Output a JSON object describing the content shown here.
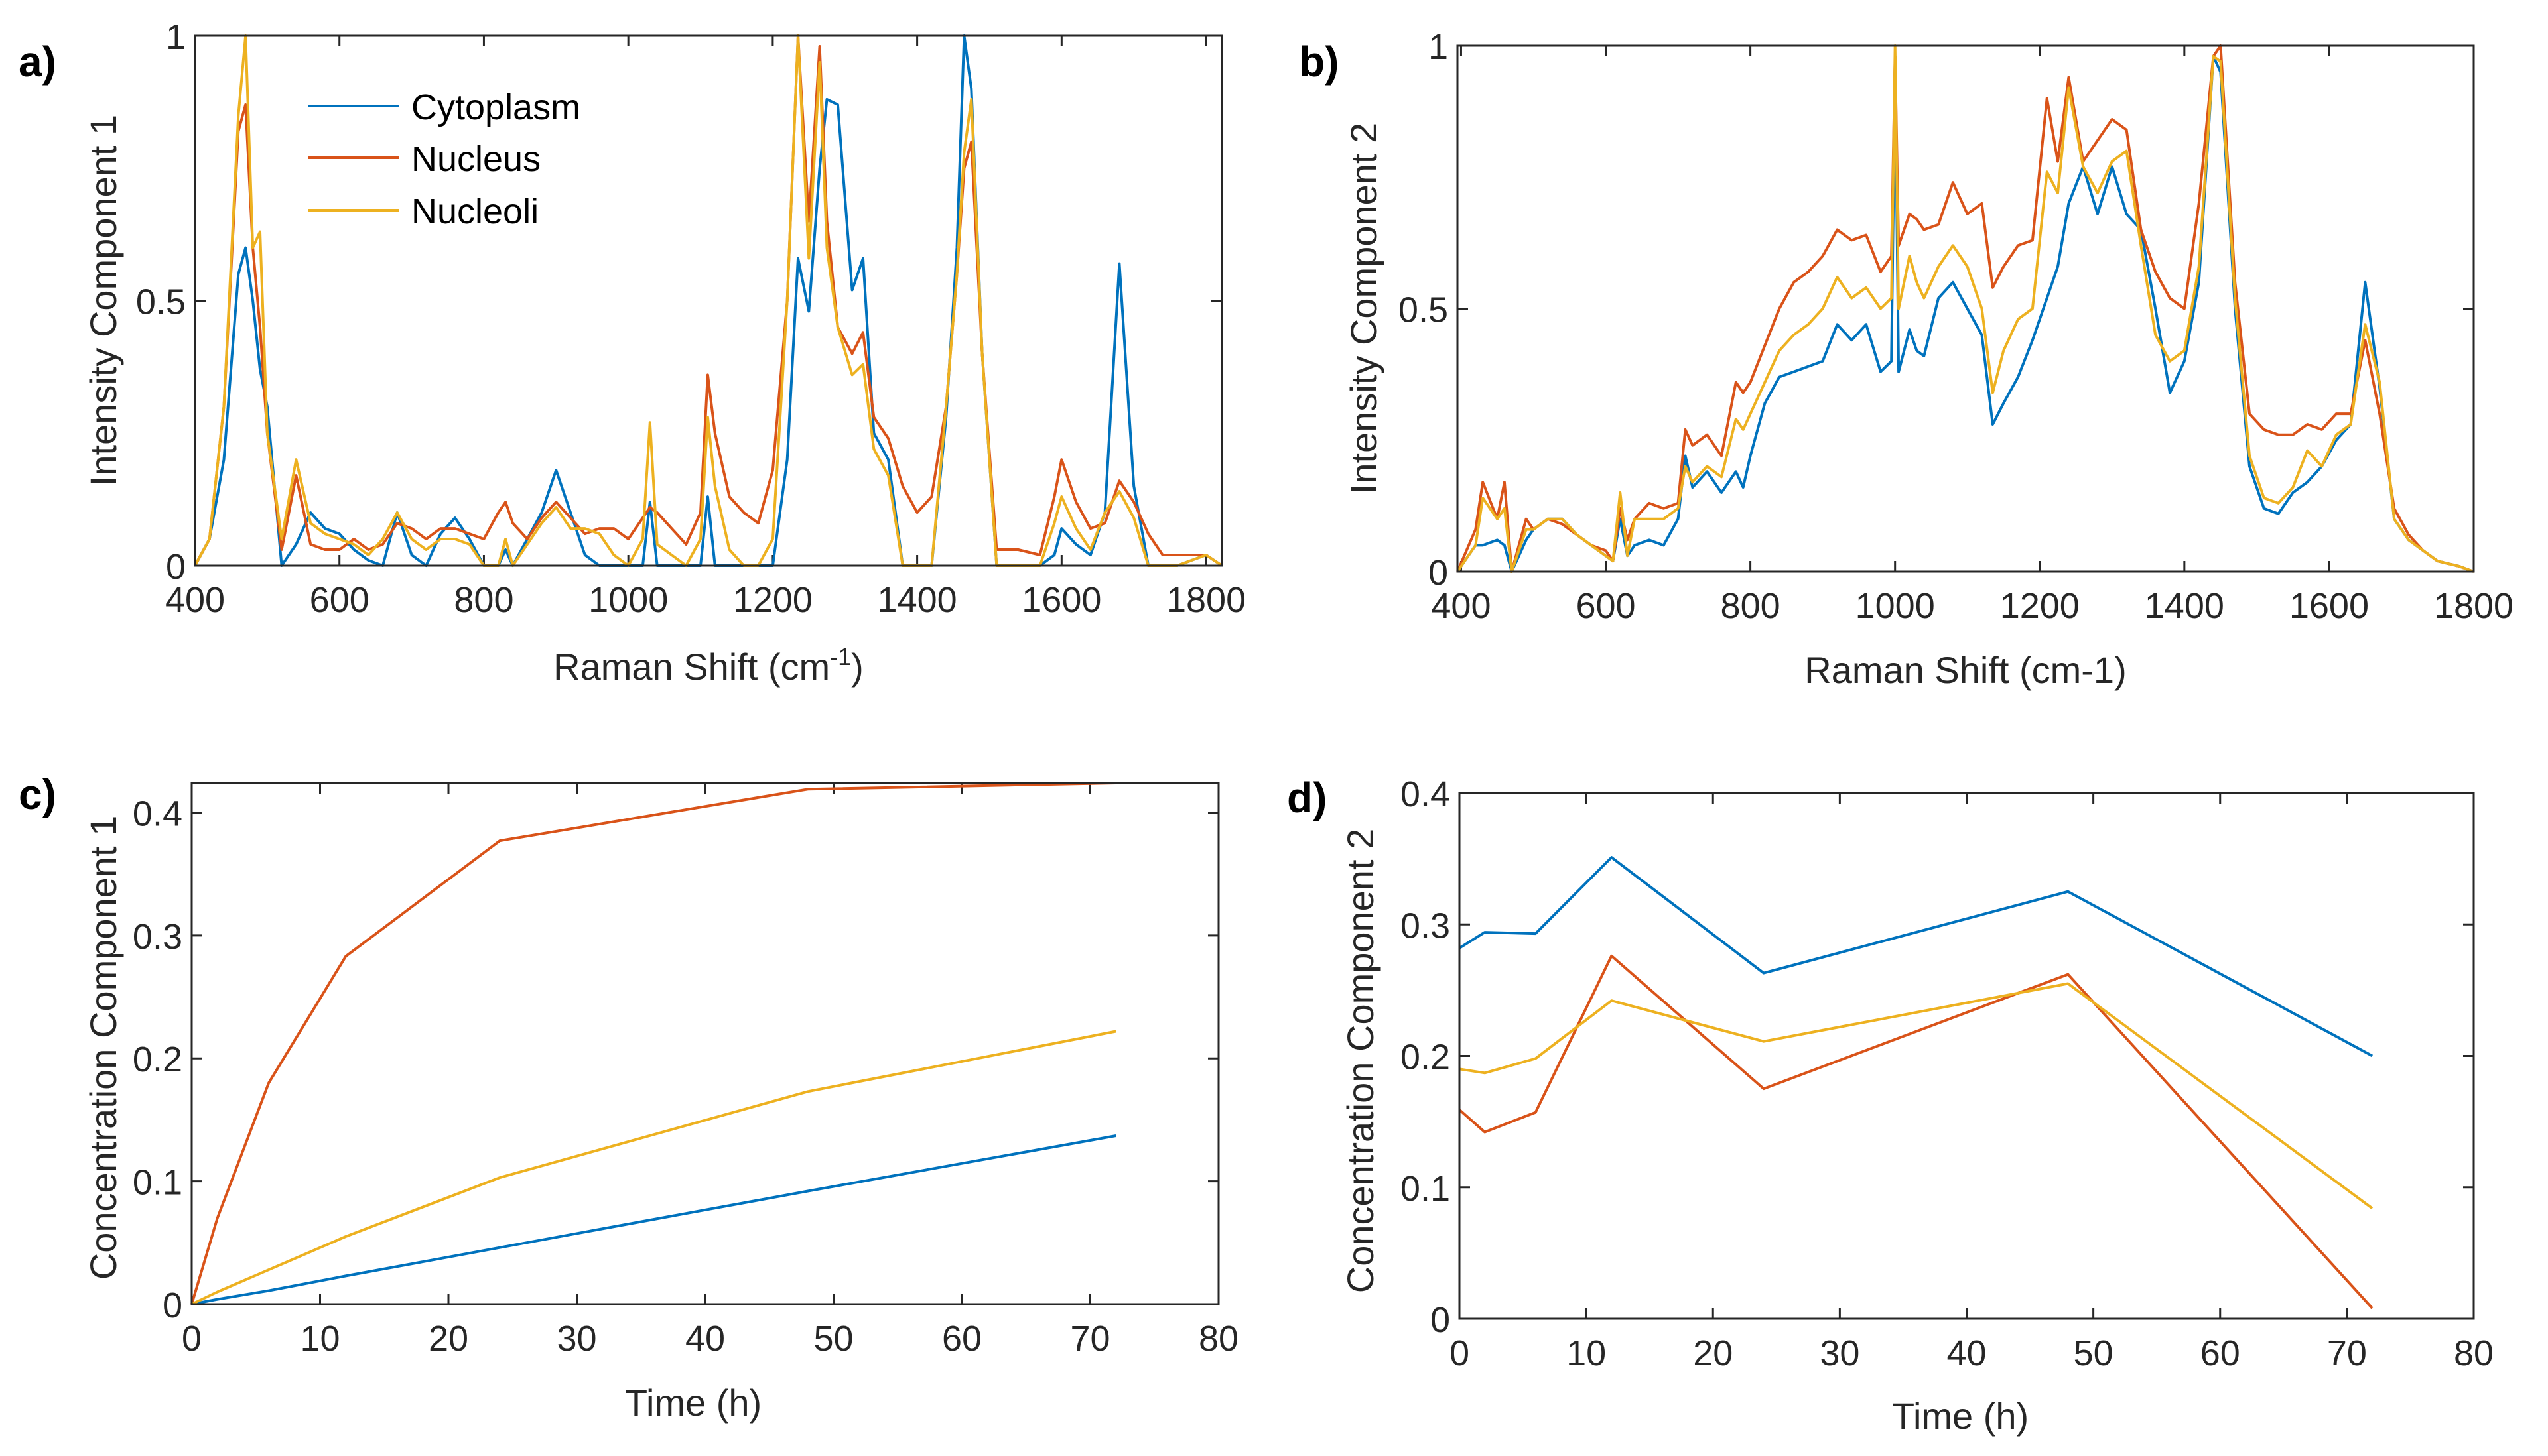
{
  "colors": {
    "Cytoplasm": "#0072BD",
    "Nucleus": "#D95319",
    "Nucleoli": "#EDB120"
  },
  "chart_data": [
    {
      "panel": "a)",
      "type": "line",
      "xlabel": "Raman Shift (cm",
      "xlabel_sup": "-1",
      "xlabel_end": ")",
      "ylabel": "Intensity Component 1",
      "xlim": [
        400,
        1822
      ],
      "ylim": [
        0,
        1
      ],
      "xticks": [
        400,
        600,
        800,
        1000,
        1200,
        1400,
        1600,
        1800
      ],
      "yticks": [
        0,
        0.5,
        1
      ],
      "legend": {
        "placement": "top-left",
        "entries": [
          "Cytoplasm",
          "Nucleus",
          "Nucleoli"
        ]
      },
      "x": [
        400,
        420,
        440,
        460,
        470,
        480,
        490,
        500,
        520,
        540,
        560,
        580,
        600,
        620,
        640,
        660,
        680,
        700,
        720,
        740,
        760,
        780,
        800,
        820,
        830,
        840,
        860,
        880,
        900,
        920,
        940,
        960,
        980,
        1000,
        1020,
        1030,
        1040,
        1060,
        1080,
        1100,
        1110,
        1120,
        1140,
        1160,
        1180,
        1200,
        1220,
        1235,
        1250,
        1265,
        1275,
        1290,
        1310,
        1325,
        1340,
        1360,
        1380,
        1400,
        1420,
        1440,
        1455,
        1465,
        1475,
        1490,
        1510,
        1540,
        1570,
        1590,
        1600,
        1620,
        1640,
        1660,
        1680,
        1700,
        1720,
        1740,
        1760,
        1780,
        1800,
        1822
      ],
      "series": [
        {
          "name": "Cytoplasm",
          "values": [
            0,
            0.05,
            0.2,
            0.55,
            0.6,
            0.5,
            0.37,
            0.3,
            0,
            0.04,
            0.1,
            0.07,
            0.06,
            0.03,
            0.01,
            0,
            0.1,
            0.02,
            0,
            0.06,
            0.09,
            0.05,
            0,
            0,
            0.03,
            0,
            0.05,
            0.1,
            0.18,
            0.1,
            0.02,
            0,
            0,
            0,
            0,
            0.12,
            0,
            0,
            0,
            0,
            0.13,
            0,
            0,
            0,
            0,
            0,
            0.2,
            0.58,
            0.48,
            0.75,
            0.88,
            0.87,
            0.52,
            0.58,
            0.25,
            0.2,
            0,
            0,
            0,
            0.28,
            0.6,
            1.0,
            0.9,
            0.4,
            0,
            0,
            0,
            0.02,
            0.07,
            0.04,
            0.02,
            0.1,
            0.57,
            0.15,
            0,
            0,
            0,
            0.01,
            0.02,
            0
          ]
        },
        {
          "name": "Nucleus",
          "values": [
            0,
            0.05,
            0.3,
            0.82,
            0.87,
            0.6,
            0.45,
            0.25,
            0.03,
            0.17,
            0.04,
            0.03,
            0.03,
            0.05,
            0.03,
            0.04,
            0.08,
            0.07,
            0.05,
            0.07,
            0.07,
            0.06,
            0.05,
            0.1,
            0.12,
            0.08,
            0.05,
            0.09,
            0.12,
            0.09,
            0.06,
            0.07,
            0.07,
            0.05,
            0.09,
            0.11,
            0.1,
            0.07,
            0.04,
            0.1,
            0.36,
            0.25,
            0.13,
            0.1,
            0.08,
            0.18,
            0.5,
            1.0,
            0.65,
            0.98,
            0.65,
            0.45,
            0.4,
            0.44,
            0.28,
            0.24,
            0.15,
            0.1,
            0.13,
            0.3,
            0.55,
            0.75,
            0.8,
            0.4,
            0.03,
            0.03,
            0.02,
            0.13,
            0.2,
            0.12,
            0.07,
            0.08,
            0.16,
            0.12,
            0.06,
            0.02,
            0.02,
            0.02,
            0.02,
            0
          ]
        },
        {
          "name": "Nucleoli",
          "values": [
            0,
            0.05,
            0.3,
            0.85,
            1.0,
            0.6,
            0.63,
            0.25,
            0.05,
            0.2,
            0.08,
            0.06,
            0.05,
            0.04,
            0.02,
            0.05,
            0.1,
            0.05,
            0.03,
            0.05,
            0.05,
            0.04,
            0,
            0,
            0.05,
            0,
            0.04,
            0.08,
            0.11,
            0.07,
            0.07,
            0.06,
            0.02,
            0,
            0.05,
            0.27,
            0.04,
            0.02,
            0,
            0.05,
            0.28,
            0.15,
            0.03,
            0,
            0,
            0.05,
            0.5,
            1.0,
            0.58,
            0.95,
            0.6,
            0.45,
            0.36,
            0.38,
            0.22,
            0.17,
            0,
            0,
            0,
            0.3,
            0.55,
            0.78,
            0.88,
            0.4,
            0,
            0,
            0,
            0.08,
            0.13,
            0.07,
            0.03,
            0.1,
            0.14,
            0.09,
            0,
            0,
            0,
            0.01,
            0.02,
            0
          ]
        }
      ]
    },
    {
      "panel": "b)",
      "type": "line",
      "xlabel": "Raman Shift (cm-1)",
      "ylabel": "Intensity Component 2",
      "xlim": [
        395,
        1800
      ],
      "ylim": [
        0,
        1
      ],
      "xticks": [
        400,
        600,
        800,
        1000,
        1200,
        1400,
        1600,
        1800
      ],
      "yticks": [
        0,
        0.5,
        1
      ],
      "x": [
        395,
        420,
        430,
        450,
        460,
        470,
        490,
        500,
        520,
        540,
        560,
        580,
        600,
        610,
        620,
        630,
        640,
        660,
        680,
        700,
        710,
        720,
        740,
        760,
        780,
        790,
        800,
        820,
        840,
        860,
        880,
        900,
        920,
        940,
        960,
        980,
        995,
        1000,
        1005,
        1020,
        1030,
        1040,
        1060,
        1080,
        1100,
        1120,
        1135,
        1150,
        1170,
        1190,
        1210,
        1225,
        1240,
        1260,
        1280,
        1300,
        1320,
        1340,
        1360,
        1380,
        1400,
        1420,
        1440,
        1450,
        1470,
        1490,
        1510,
        1530,
        1550,
        1570,
        1590,
        1610,
        1630,
        1650,
        1670,
        1690,
        1710,
        1730,
        1750,
        1780,
        1800
      ],
      "series": [
        {
          "name": "Cytoplasm",
          "values": [
            0,
            0.05,
            0.05,
            0.06,
            0.05,
            0,
            0.06,
            0.08,
            0.1,
            0.1,
            0.07,
            0.05,
            0.03,
            0.02,
            0.1,
            0.03,
            0.05,
            0.06,
            0.05,
            0.1,
            0.22,
            0.16,
            0.19,
            0.15,
            0.19,
            0.16,
            0.22,
            0.32,
            0.37,
            0.38,
            0.39,
            0.4,
            0.47,
            0.44,
            0.47,
            0.38,
            0.4,
            0.98,
            0.38,
            0.46,
            0.42,
            0.41,
            0.52,
            0.55,
            0.5,
            0.45,
            0.28,
            0.32,
            0.37,
            0.44,
            0.52,
            0.58,
            0.7,
            0.77,
            0.68,
            0.77,
            0.68,
            0.65,
            0.5,
            0.34,
            0.4,
            0.55,
            0.98,
            0.95,
            0.5,
            0.2,
            0.12,
            0.11,
            0.15,
            0.17,
            0.2,
            0.25,
            0.28,
            0.55,
            0.35,
            0.1,
            0.06,
            0.04,
            0.02,
            0.01,
            0
          ]
        },
        {
          "name": "Nucleus",
          "values": [
            0,
            0.08,
            0.17,
            0.1,
            0.17,
            0,
            0.1,
            0.08,
            0.1,
            0.09,
            0.07,
            0.05,
            0.04,
            0.02,
            0.12,
            0.06,
            0.1,
            0.13,
            0.12,
            0.13,
            0.27,
            0.24,
            0.26,
            0.22,
            0.36,
            0.34,
            0.36,
            0.43,
            0.5,
            0.55,
            0.57,
            0.6,
            0.65,
            0.63,
            0.64,
            0.57,
            0.6,
            0.98,
            0.62,
            0.68,
            0.67,
            0.65,
            0.66,
            0.74,
            0.68,
            0.7,
            0.54,
            0.58,
            0.62,
            0.63,
            0.9,
            0.78,
            0.94,
            0.78,
            0.82,
            0.86,
            0.84,
            0.65,
            0.57,
            0.52,
            0.5,
            0.7,
            0.98,
            1.0,
            0.55,
            0.3,
            0.27,
            0.26,
            0.26,
            0.28,
            0.27,
            0.3,
            0.3,
            0.44,
            0.3,
            0.12,
            0.07,
            0.04,
            0.02,
            0.01,
            0
          ]
        },
        {
          "name": "Nucleoli",
          "values": [
            0,
            0.05,
            0.14,
            0.1,
            0.12,
            0,
            0.08,
            0.08,
            0.1,
            0.1,
            0.07,
            0.05,
            0.03,
            0.02,
            0.15,
            0.03,
            0.1,
            0.1,
            0.1,
            0.12,
            0.2,
            0.17,
            0.2,
            0.18,
            0.29,
            0.27,
            0.3,
            0.36,
            0.42,
            0.45,
            0.47,
            0.5,
            0.56,
            0.52,
            0.54,
            0.5,
            0.52,
            1.0,
            0.5,
            0.6,
            0.55,
            0.52,
            0.58,
            0.62,
            0.58,
            0.5,
            0.34,
            0.42,
            0.48,
            0.5,
            0.76,
            0.72,
            0.92,
            0.77,
            0.72,
            0.78,
            0.8,
            0.62,
            0.45,
            0.4,
            0.42,
            0.58,
            0.98,
            0.97,
            0.52,
            0.22,
            0.14,
            0.13,
            0.16,
            0.23,
            0.2,
            0.26,
            0.28,
            0.47,
            0.36,
            0.1,
            0.06,
            0.04,
            0.02,
            0.01,
            0
          ]
        }
      ]
    },
    {
      "panel": "c)",
      "type": "line",
      "xlabel": "Time (h)",
      "ylabel": "Concentration Component 1",
      "xlim": [
        0,
        80
      ],
      "ylim": [
        0,
        0.424
      ],
      "xticks": [
        0,
        10,
        20,
        30,
        40,
        50,
        60,
        70,
        80
      ],
      "yticks": [
        0,
        0.1,
        0.2,
        0.3,
        0.4
      ],
      "x": [
        0,
        2,
        6,
        12,
        24,
        48,
        72
      ],
      "series": [
        {
          "name": "Cytoplasm",
          "values": [
            0,
            0.004,
            0.011,
            0.023,
            0.046,
            0.092,
            0.137
          ]
        },
        {
          "name": "Nucleus",
          "values": [
            0,
            0.07,
            0.18,
            0.283,
            0.377,
            0.419,
            0.424
          ]
        },
        {
          "name": "Nucleoli",
          "values": [
            0,
            0.01,
            0.028,
            0.055,
            0.103,
            0.173,
            0.222
          ]
        }
      ]
    },
    {
      "panel": "d)",
      "type": "line",
      "xlabel": "Time (h)",
      "ylabel": "Concentration Component 2",
      "xlim": [
        0,
        80
      ],
      "ylim": [
        0,
        0.4
      ],
      "xticks": [
        0,
        10,
        20,
        30,
        40,
        50,
        60,
        70,
        80
      ],
      "yticks": [
        0,
        0.1,
        0.2,
        0.3,
        0.4
      ],
      "x": [
        0,
        2,
        6,
        12,
        24,
        48,
        72
      ],
      "series": [
        {
          "name": "Cytoplasm",
          "values": [
            0.282,
            0.294,
            0.293,
            0.351,
            0.263,
            0.325,
            0.2
          ]
        },
        {
          "name": "Nucleus",
          "values": [
            0.159,
            0.142,
            0.157,
            0.276,
            0.175,
            0.262,
            0.008
          ]
        },
        {
          "name": "Nucleoli",
          "values": [
            0.19,
            0.187,
            0.198,
            0.242,
            0.211,
            0.255,
            0.084
          ]
        }
      ]
    }
  ]
}
